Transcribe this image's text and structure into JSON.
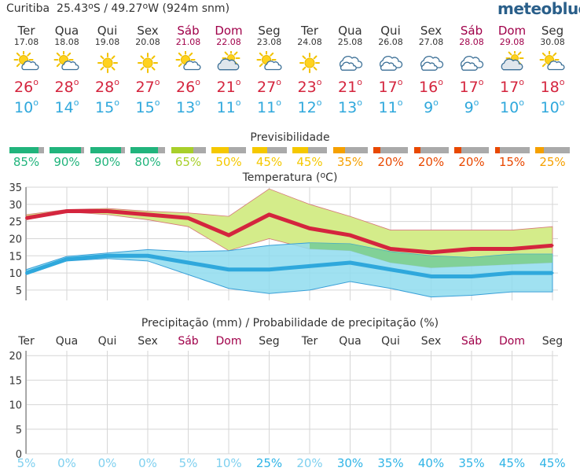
{
  "header": {
    "location": "Curitiba",
    "coords_prefix": "25.43",
    "coords_mid": "S / 49.27",
    "coords_suffix": "W (924m snm)",
    "brand": "meteoblue"
  },
  "days": [
    {
      "name": "Ter",
      "date": "17.08",
      "weekend": false,
      "icon": "sun-cloud-icon",
      "tmax": "26",
      "tmin": "10",
      "predict": 85,
      "pcolor": "#21b47c"
    },
    {
      "name": "Qua",
      "date": "18.08",
      "weekend": false,
      "icon": "sun-cloud-icon",
      "tmax": "28",
      "tmin": "14",
      "predict": 90,
      "pcolor": "#21b47c"
    },
    {
      "name": "Qui",
      "date": "19.08",
      "weekend": false,
      "icon": "sun-icon",
      "tmax": "28",
      "tmin": "15",
      "predict": 90,
      "pcolor": "#21b47c"
    },
    {
      "name": "Sex",
      "date": "20.08",
      "weekend": false,
      "icon": "sun-icon",
      "tmax": "27",
      "tmin": "15",
      "predict": 80,
      "pcolor": "#21b47c"
    },
    {
      "name": "Sáb",
      "date": "21.08",
      "weekend": true,
      "icon": "sun-cloud-icon",
      "tmax": "26",
      "tmin": "13",
      "predict": 65,
      "pcolor": "#a8cf2a"
    },
    {
      "name": "Dom",
      "date": "22.08",
      "weekend": true,
      "icon": "cloud-sun-icon",
      "tmax": "21",
      "tmin": "11",
      "predict": 50,
      "pcolor": "#f5c800"
    },
    {
      "name": "Seg",
      "date": "23.08",
      "weekend": false,
      "icon": "sun-cloud-icon",
      "tmax": "27",
      "tmin": "11",
      "predict": 45,
      "pcolor": "#f5c800"
    },
    {
      "name": "Ter",
      "date": "24.08",
      "weekend": false,
      "icon": "sun-icon",
      "tmax": "23",
      "tmin": "12",
      "predict": 45,
      "pcolor": "#f5c800"
    },
    {
      "name": "Qua",
      "date": "25.08",
      "weekend": false,
      "icon": "cloud-icon",
      "tmax": "21",
      "tmin": "13",
      "predict": 35,
      "pcolor": "#f5a000"
    },
    {
      "name": "Qui",
      "date": "26.08",
      "weekend": false,
      "icon": "cloud-icon",
      "tmax": "17",
      "tmin": "11",
      "predict": 20,
      "pcolor": "#e84800"
    },
    {
      "name": "Sex",
      "date": "27.08",
      "weekend": false,
      "icon": "cloud-icon",
      "tmax": "16",
      "tmin": "9",
      "predict": 20,
      "pcolor": "#e84800"
    },
    {
      "name": "Sáb",
      "date": "28.08",
      "weekend": true,
      "icon": "cloud-icon",
      "tmax": "17",
      "tmin": "9",
      "predict": 20,
      "pcolor": "#e84800"
    },
    {
      "name": "Dom",
      "date": "29.08",
      "weekend": true,
      "icon": "cloud-sun-icon",
      "tmax": "17",
      "tmin": "10",
      "predict": 15,
      "pcolor": "#e84800"
    },
    {
      "name": "Seg",
      "date": "30.08",
      "weekend": false,
      "icon": "sun-cloud-icon",
      "tmax": "18",
      "tmin": "10",
      "predict": 25,
      "pcolor": "#f5a000"
    }
  ],
  "labels": {
    "predictability_title": "Previsibilidade",
    "temperature_title": "Temperatura (",
    "temperature_title_end": "C)",
    "precip_title": "Precipitação (mm) / Probabilidade de precipitação (%)"
  },
  "colors": {
    "weekend": "#a0004a",
    "max": "#d4253e",
    "min": "#2fa8dc",
    "max_band": "#d4ec8a",
    "min_band": "#8fdcef",
    "overlap": "#7dcf8a",
    "prob": "#7fd0ef"
  },
  "chart_data": [
    {
      "type": "area",
      "title": "Temperatura (°C)",
      "categories": [
        "Ter",
        "Qua",
        "Qui",
        "Sex",
        "Sáb",
        "Dom",
        "Seg",
        "Ter",
        "Qua",
        "Qui",
        "Sex",
        "Sáb",
        "Dom",
        "Seg"
      ],
      "ylim": [
        2,
        35
      ],
      "yticks": [
        5,
        10,
        15,
        20,
        25,
        30,
        35
      ],
      "grid": true,
      "series": [
        {
          "values": [
            26,
            28,
            28,
            27,
            26,
            21,
            27,
            23,
            21,
            17,
            16,
            17,
            17,
            18
          ]
        },
        {
          "values": [
            10,
            14,
            15,
            15,
            13,
            11,
            11,
            12,
            13,
            11,
            9,
            9,
            10,
            10
          ]
        }
      ],
      "max_band_upper": [
        27,
        28.5,
        28.8,
        28,
        27.5,
        26.5,
        34.5,
        30,
        26.5,
        22.5,
        22.5,
        22.5,
        22.5,
        23.5
      ],
      "max_band_lower": [
        25.5,
        27.8,
        27,
        25.5,
        23.5,
        16.5,
        20,
        17,
        16.5,
        13,
        11.5,
        12,
        12.5,
        13
      ],
      "min_band_upper": [
        11,
        14.8,
        15.8,
        16.8,
        16.2,
        16.5,
        18,
        18.8,
        18.5,
        16.2,
        15,
        14.5,
        15.5,
        15.5
      ],
      "min_band_lower": [
        9.5,
        13.5,
        14.2,
        13.5,
        9.5,
        5.5,
        4,
        5,
        7.5,
        5.5,
        3,
        3.5,
        4.5,
        4.5
      ]
    },
    {
      "type": "bar",
      "title": "Precipitação (mm) / Probabilidade de precipitação (%)",
      "categories": [
        "Ter",
        "Qua",
        "Qui",
        "Sex",
        "Sáb",
        "Dom",
        "Seg",
        "Ter",
        "Qua",
        "Qui",
        "Sex",
        "Sáb",
        "Dom",
        "Seg"
      ],
      "ylim": [
        0,
        21
      ],
      "yticks": [
        0,
        5,
        10,
        15,
        20
      ],
      "grid": true,
      "values": [
        0,
        0,
        0,
        0,
        0,
        0,
        0,
        0,
        0,
        0,
        0,
        0,
        0,
        0
      ],
      "probability": [
        "5%",
        "0%",
        "0%",
        "0%",
        "5%",
        "10%",
        "25%",
        "20%",
        "30%",
        "35%",
        "40%",
        "35%",
        "45%",
        "45%"
      ]
    }
  ]
}
